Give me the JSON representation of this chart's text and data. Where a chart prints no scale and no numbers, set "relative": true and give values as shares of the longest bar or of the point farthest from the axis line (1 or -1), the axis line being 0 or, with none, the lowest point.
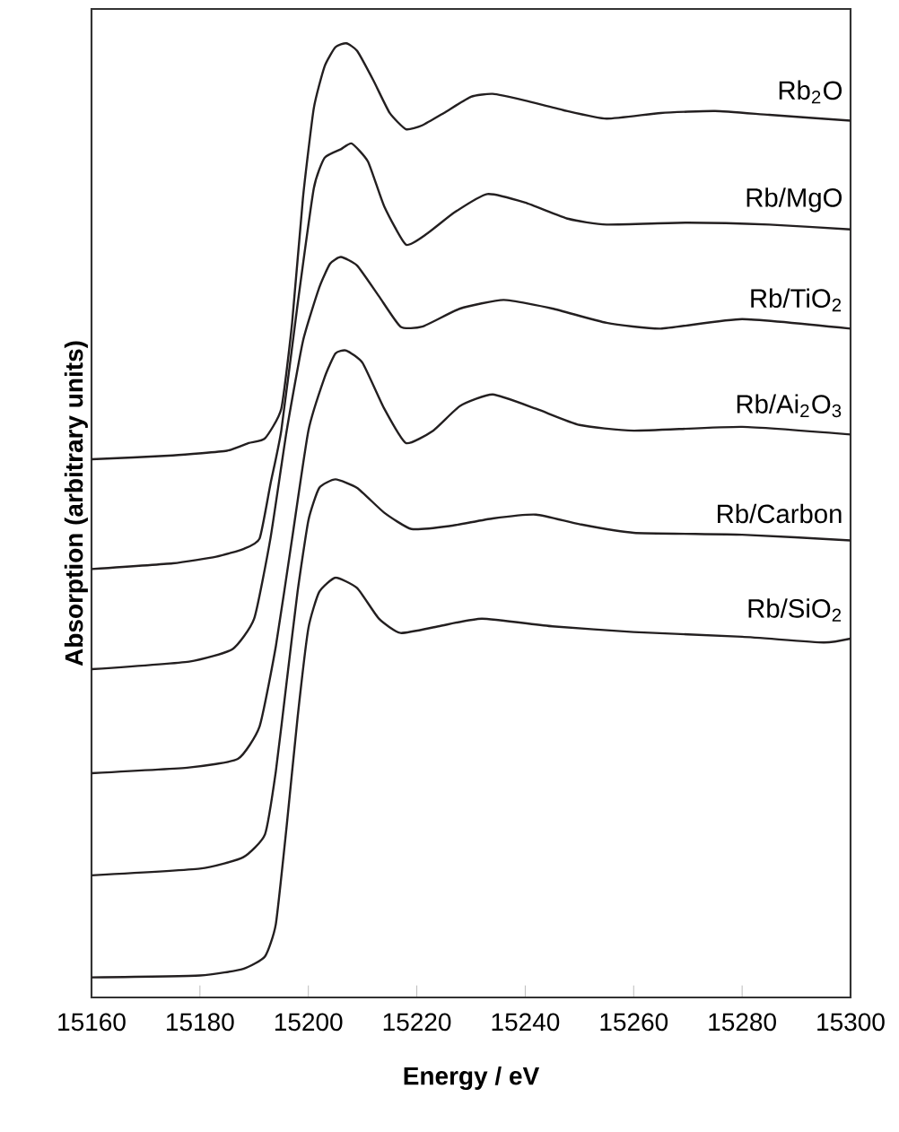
{
  "chart_data": {
    "type": "line",
    "relative": true,
    "xlabel": "Energy / eV",
    "ylabel": "Absorption (arbitrary units)",
    "xlim": [
      15160,
      15300
    ],
    "xticks": [
      15160,
      15180,
      15200,
      15220,
      15240,
      15260,
      15280,
      15300
    ],
    "marker": "none",
    "line_style": "solid",
    "grid": false,
    "legend": false,
    "series": [
      {
        "name": "Rb$_{2}$O",
        "color": "#231f20",
        "x": [
          15160,
          15175,
          15185,
          15189,
          15192,
          15195,
          15197,
          15199,
          15201,
          15203,
          15205,
          15207,
          15209,
          15212,
          15215,
          15218,
          15221,
          15225,
          15230,
          15234,
          15240,
          15247,
          15255,
          15265,
          15275,
          15285,
          15300
        ],
        "values": [
          0.564,
          0.568,
          0.573,
          0.581,
          0.586,
          0.617,
          0.707,
          0.838,
          0.932,
          0.976,
          0.996,
          1.0,
          0.992,
          0.961,
          0.927,
          0.91,
          0.914,
          0.927,
          0.944,
          0.947,
          0.94,
          0.93,
          0.921,
          0.927,
          0.929,
          0.925,
          0.919
        ]
      },
      {
        "name": "Rb/MgO",
        "color": "#231f20",
        "x": [
          15160,
          15175,
          15183,
          15188,
          15191,
          15193,
          15195,
          15198,
          15201,
          15203,
          15206,
          15208,
          15211,
          15214,
          15218,
          15222,
          15227,
          15233,
          15240,
          15248,
          15255,
          15270,
          15285,
          15300
        ],
        "values": [
          0.449,
          0.455,
          0.462,
          0.47,
          0.481,
          0.538,
          0.594,
          0.726,
          0.848,
          0.88,
          0.889,
          0.895,
          0.876,
          0.829,
          0.789,
          0.801,
          0.823,
          0.842,
          0.833,
          0.816,
          0.81,
          0.812,
          0.81,
          0.805
        ]
      },
      {
        "name": "Rb/TiO$_{2}$",
        "color": "#231f20",
        "x": [
          15160,
          15178,
          15186,
          15190,
          15193,
          15196,
          15199,
          15202,
          15204,
          15206,
          15209,
          15213,
          15217,
          15221,
          15228,
          15236,
          15245,
          15255,
          15265,
          15280,
          15300
        ],
        "values": [
          0.344,
          0.352,
          0.365,
          0.397,
          0.481,
          0.594,
          0.688,
          0.744,
          0.769,
          0.776,
          0.767,
          0.735,
          0.703,
          0.703,
          0.722,
          0.731,
          0.722,
          0.707,
          0.701,
          0.711,
          0.701
        ]
      },
      {
        "name": "Rb/Ai$_{2}$O$_{3}$",
        "color": "#231f20",
        "x": [
          15160,
          15178,
          15187,
          15191,
          15194,
          15197,
          15200,
          15203,
          15205,
          15207,
          15210,
          15214,
          15218,
          15223,
          15228,
          15234,
          15242,
          15250,
          15260,
          15280,
          15300
        ],
        "values": [
          0.235,
          0.241,
          0.25,
          0.284,
          0.368,
          0.481,
          0.594,
          0.65,
          0.675,
          0.678,
          0.665,
          0.617,
          0.581,
          0.594,
          0.62,
          0.632,
          0.617,
          0.6,
          0.594,
          0.598,
          0.59
        ]
      },
      {
        "name": "Rb/Carbon",
        "color": "#231f20",
        "x": [
          15160,
          15180,
          15188,
          15192,
          15194,
          15196,
          15198,
          15200,
          15202,
          15205,
          15209,
          15214,
          15219,
          15226,
          15234,
          15242,
          15250,
          15260,
          15280,
          15300
        ],
        "values": [
          0.128,
          0.135,
          0.147,
          0.171,
          0.237,
          0.331,
          0.425,
          0.5,
          0.534,
          0.543,
          0.534,
          0.508,
          0.491,
          0.494,
          0.502,
          0.506,
          0.496,
          0.487,
          0.485,
          0.479
        ]
      },
      {
        "name": "Rb/SiO$_{2}$",
        "color": "#231f20",
        "x": [
          15160,
          15180,
          15188,
          15192,
          15194,
          15196,
          15198,
          15200,
          15202,
          15205,
          15209,
          15213,
          15217,
          15224,
          15232,
          15245,
          15260,
          15280,
          15295,
          15300
        ],
        "values": [
          0.021,
          0.023,
          0.03,
          0.043,
          0.077,
          0.18,
          0.293,
          0.387,
          0.425,
          0.44,
          0.429,
          0.397,
          0.382,
          0.389,
          0.397,
          0.389,
          0.383,
          0.378,
          0.372,
          0.376
        ]
      }
    ]
  }
}
